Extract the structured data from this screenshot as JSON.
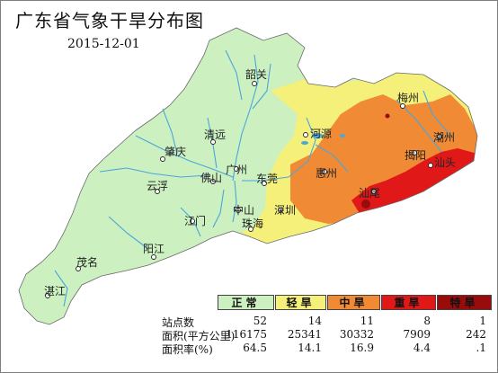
{
  "title": "广东省气象干旱分布图",
  "date": "2015-12-01",
  "colors": {
    "normal": "#ccf0c0",
    "light": "#f5f07a",
    "moderate": "#f08a35",
    "severe": "#e01818",
    "extreme": "#9a0c0c",
    "river": "#4aa6dc"
  },
  "cities": [
    {
      "name": "韶关"
    },
    {
      "name": "梅州"
    },
    {
      "name": "清远"
    },
    {
      "name": "河源"
    },
    {
      "name": "潮州"
    },
    {
      "name": "肇庆"
    },
    {
      "name": "揭阳"
    },
    {
      "name": "汕头"
    },
    {
      "name": "广州"
    },
    {
      "name": "佛山"
    },
    {
      "name": "东莞"
    },
    {
      "name": "惠州"
    },
    {
      "name": "云浮"
    },
    {
      "name": "汕尾"
    },
    {
      "name": "深圳"
    },
    {
      "name": "中山"
    },
    {
      "name": "江门"
    },
    {
      "name": "珠海"
    },
    {
      "name": "阳江"
    },
    {
      "name": "茂名"
    },
    {
      "name": "湛江"
    }
  ],
  "legend": {
    "categories": [
      "正常",
      "轻旱",
      "中旱",
      "重旱",
      "特旱"
    ],
    "stations_label": "站点数",
    "area_label": "面积(平方公里)",
    "ratio_label": "面积率(%)",
    "stations": [
      "52",
      "14",
      "11",
      "8",
      "1"
    ],
    "area": [
      "116175",
      "25341",
      "30332",
      "7909",
      "242"
    ],
    "ratio": [
      "64.5",
      "14.1",
      "16.9",
      "4.4",
      ".1"
    ]
  }
}
